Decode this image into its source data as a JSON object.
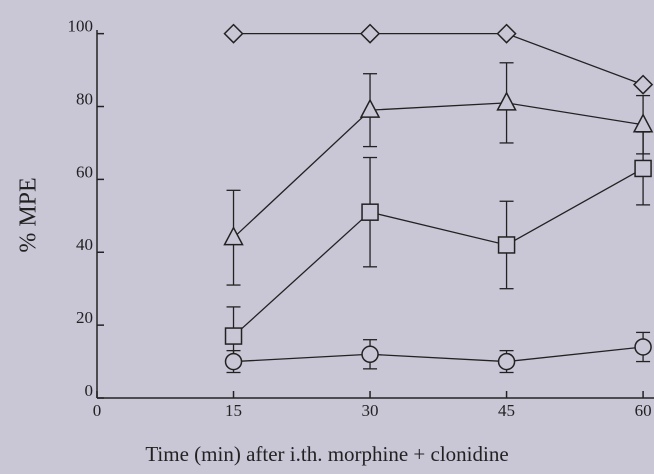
{
  "chart_data": {
    "type": "line",
    "x_label": "Time (min) after i.th. morphine + clonidine",
    "y_label": "% MPE",
    "x": [
      15,
      30,
      45,
      60
    ],
    "series": [
      {
        "marker": "diamond",
        "color": "#222222",
        "values": [
          100,
          100,
          100,
          86
        ]
      },
      {
        "marker": "triangle",
        "color": "#222222",
        "values": [
          44,
          79,
          81,
          75
        ],
        "errors": [
          13,
          10,
          11,
          8
        ]
      },
      {
        "marker": "square",
        "color": "#222222",
        "values": [
          17,
          51,
          42,
          63
        ],
        "errors": [
          8,
          15,
          12,
          10
        ]
      },
      {
        "marker": "circle",
        "color": "#222222",
        "values": [
          10,
          12,
          10,
          14
        ],
        "errors": [
          3,
          4,
          3,
          4
        ]
      }
    ],
    "xlim": [
      0,
      61.2
    ],
    "ylim": [
      0,
      101
    ],
    "xticks": [
      0,
      15,
      30,
      45,
      60
    ],
    "yticks": [
      0,
      20,
      40,
      60,
      80,
      100
    ],
    "grid": false
  }
}
